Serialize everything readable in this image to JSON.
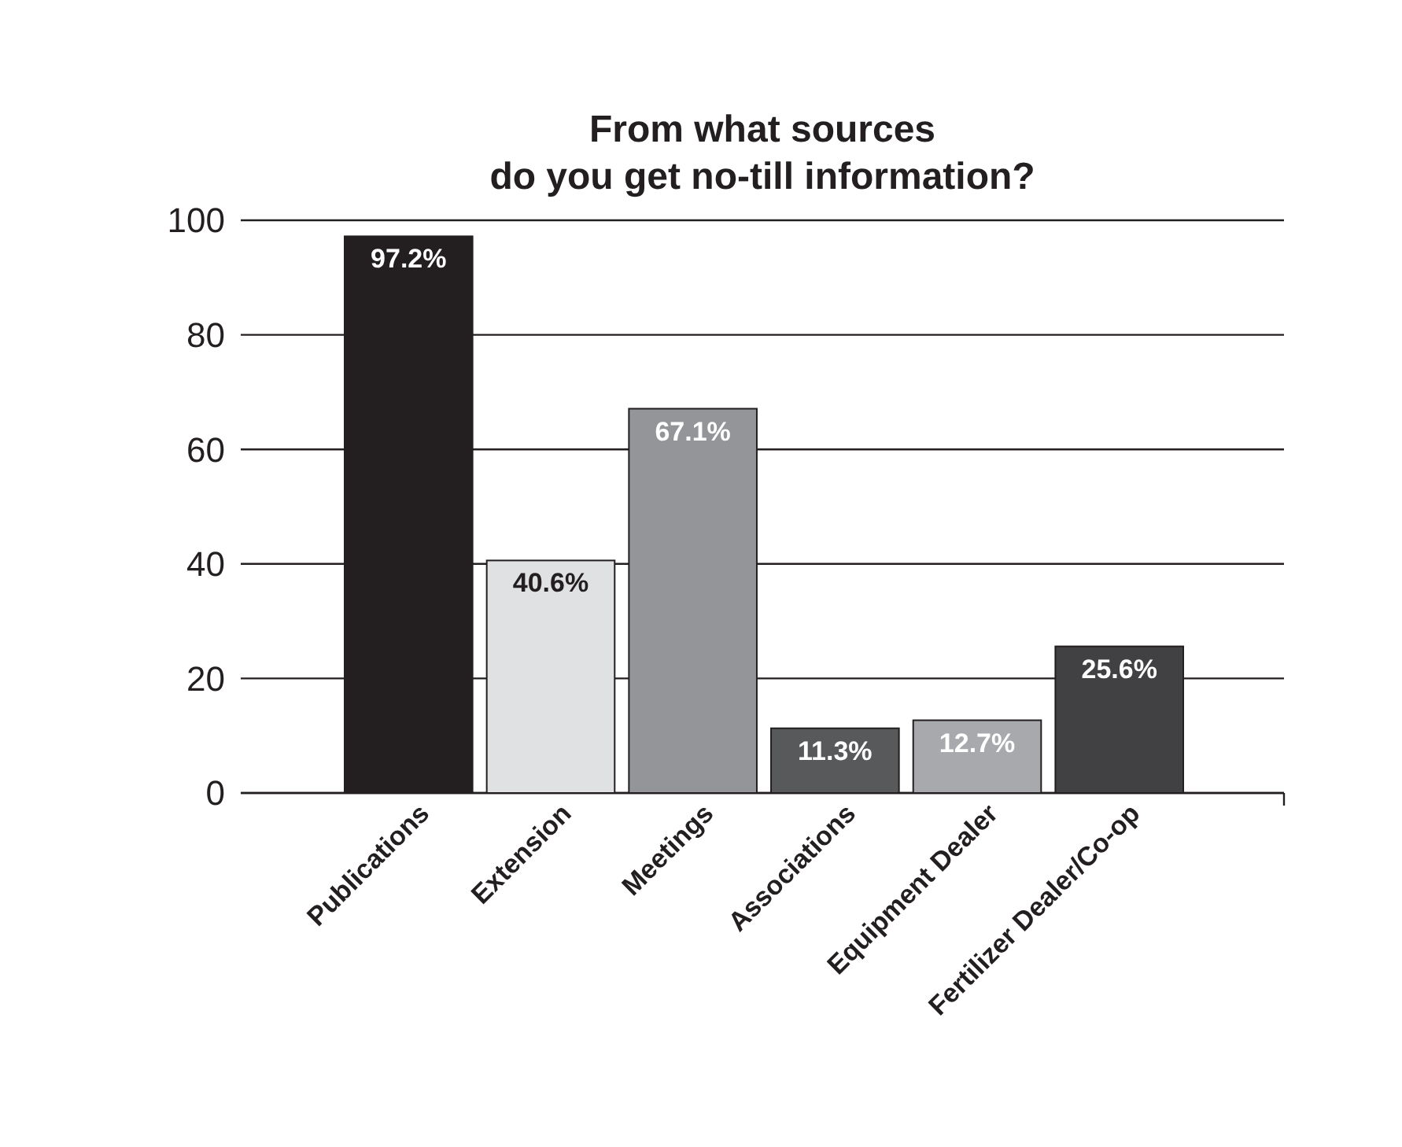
{
  "chart_data": {
    "type": "bar",
    "title": "From what sources\ndo you get no-till information?",
    "categories": [
      "Publications",
      "Extension",
      "Meetings",
      "Associations",
      "Equipment Dealer",
      "Fertilizer Dealer/Co-op"
    ],
    "values": [
      97.2,
      40.6,
      67.1,
      11.3,
      12.7,
      25.6
    ],
    "colors": [
      "#231f20",
      "#e0e1e3",
      "#939598",
      "#58595b",
      "#a7a9ac",
      "#414042"
    ],
    "value_labels": [
      "97.2%",
      "40.6%",
      "67.1%",
      "11.3%",
      "12.7%",
      "25.6%"
    ],
    "ylim": [
      0,
      100
    ],
    "yticks": [
      0,
      20,
      40,
      60,
      80,
      100
    ],
    "grid": "y"
  }
}
